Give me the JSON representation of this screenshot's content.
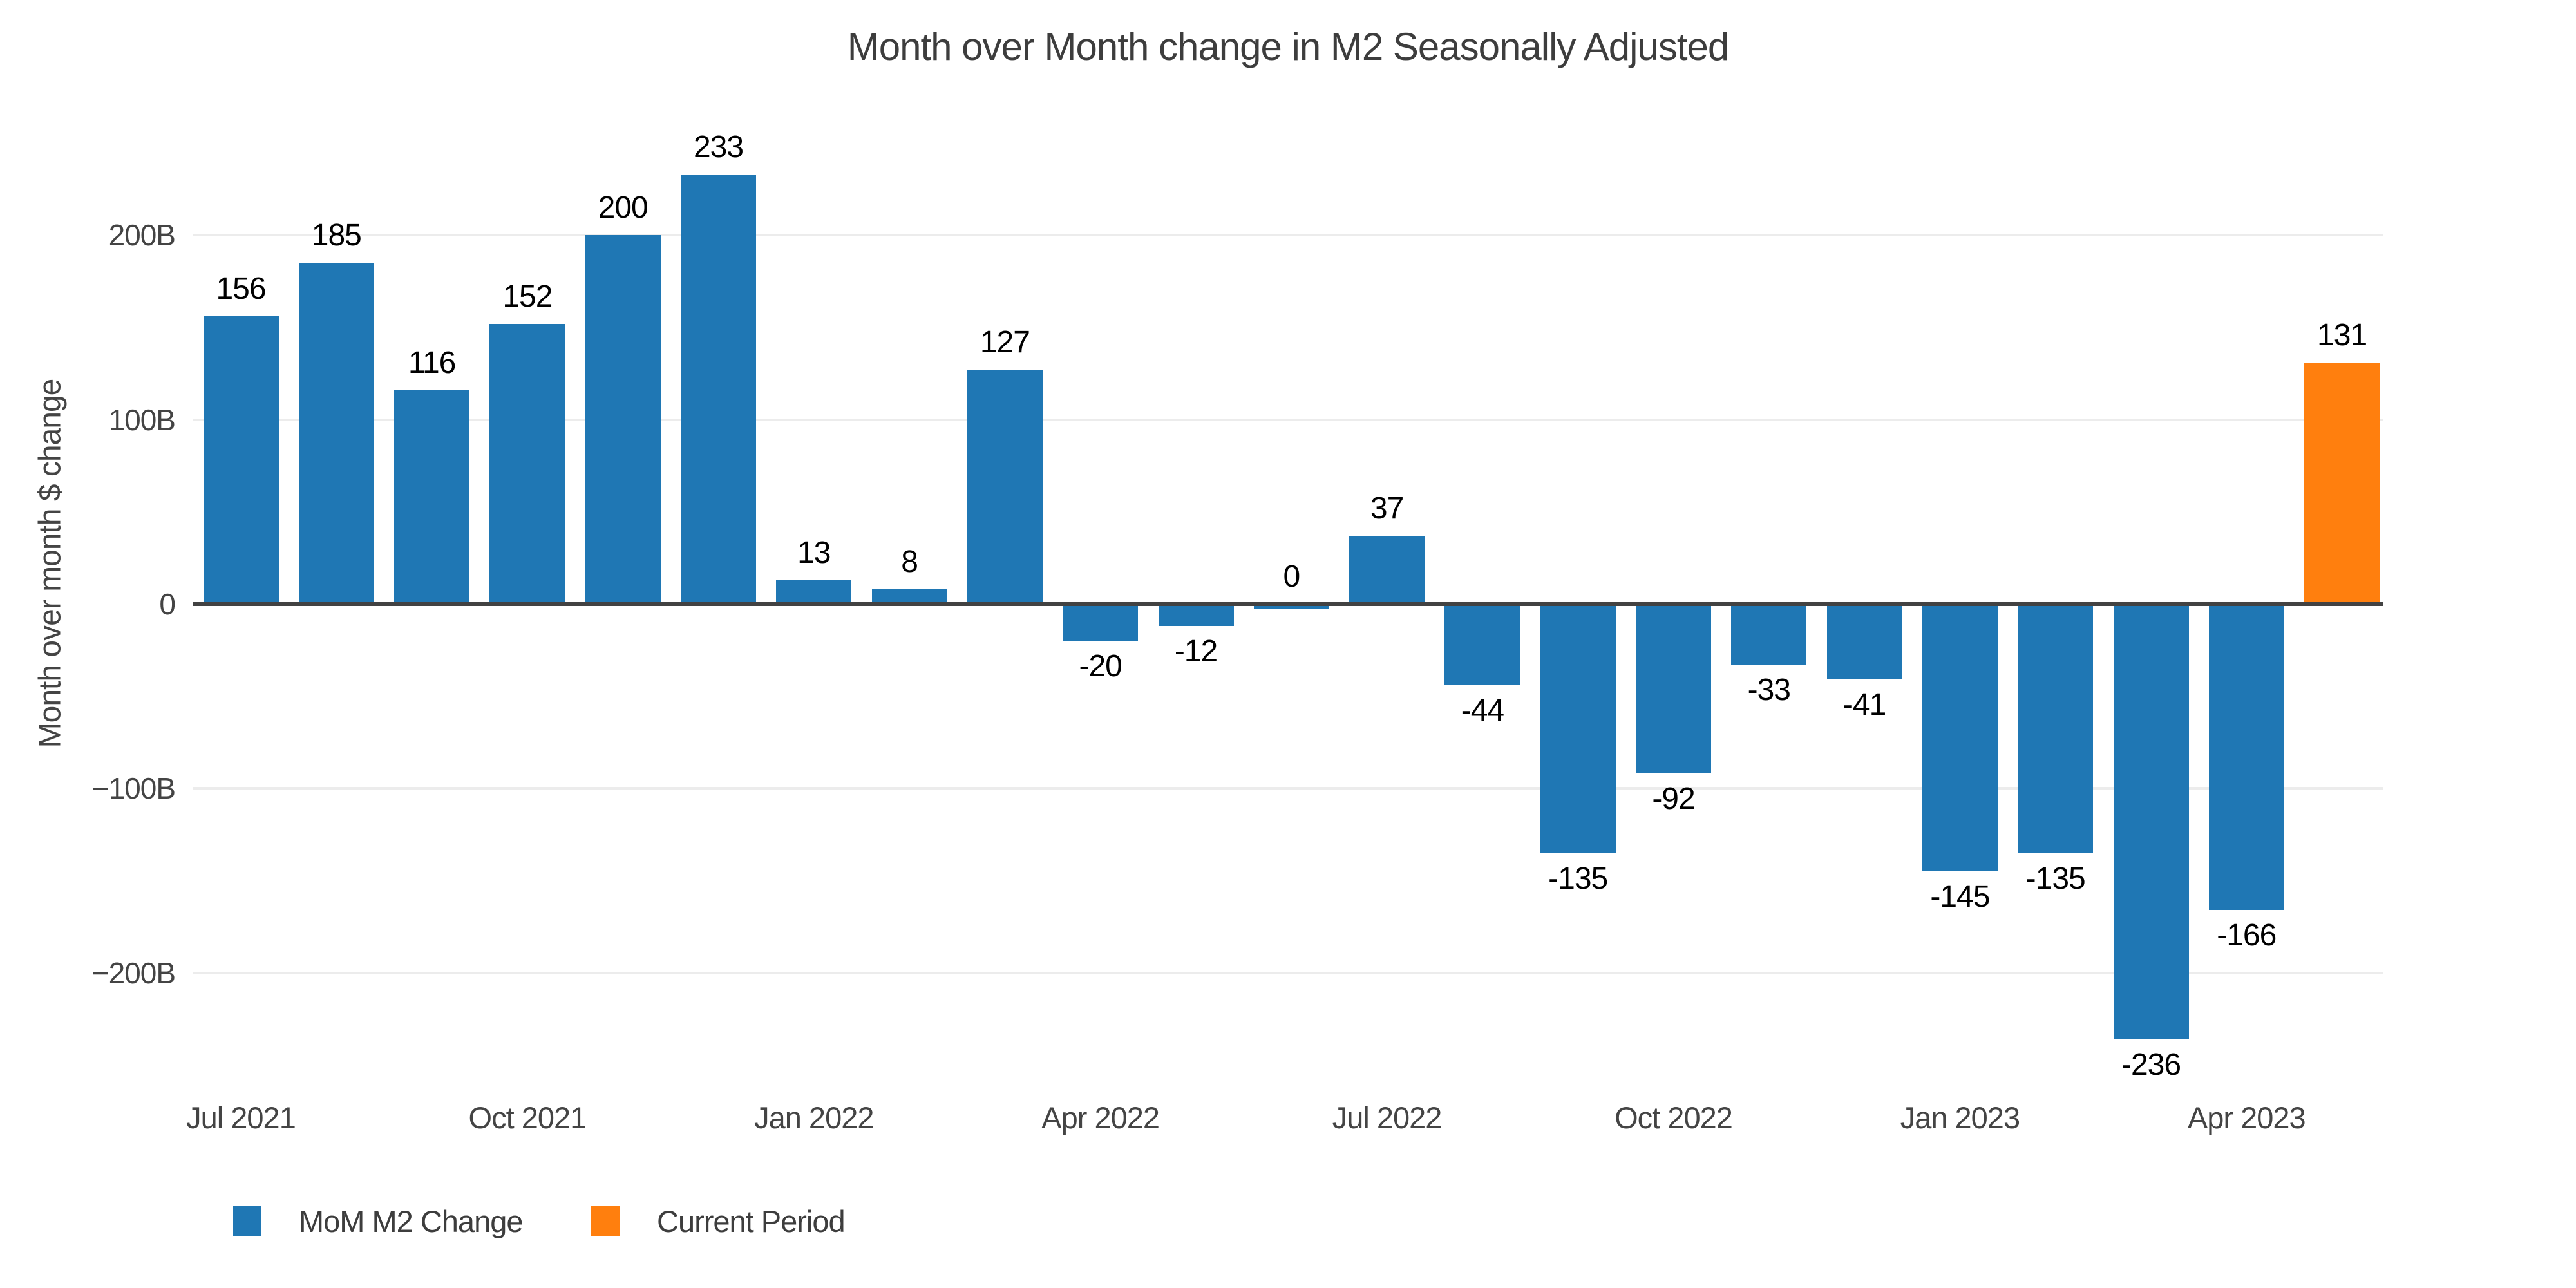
{
  "colors": {
    "primary_bar": "#1f77b4",
    "current_bar": "#ff7f0e",
    "gridline": "#ececec",
    "zero_line": "#424242",
    "axis_text": "#444444",
    "bar_label_text": "#000000",
    "title_text": "#3d3d3d",
    "background": "#ffffff"
  },
  "legend": {
    "items": [
      {
        "label": "MoM M2 Change",
        "color_key": "primary_bar"
      },
      {
        "label": "Current Period",
        "color_key": "current_bar"
      }
    ]
  },
  "chart_data": {
    "type": "bar",
    "title": "Month over Month change in M2 Seasonally Adjusted",
    "xlabel": "",
    "ylabel": "Month over month $ change",
    "values": [
      156,
      185,
      116,
      152,
      200,
      233,
      13,
      8,
      127,
      -20,
      -12,
      0,
      37,
      -44,
      -135,
      -92,
      -33,
      -41,
      -145,
      -135,
      -236,
      -166,
      131
    ],
    "bar_value_labels": [
      "156",
      "185",
      "116",
      "152",
      "200",
      "233",
      "13",
      "8",
      "127",
      "-20",
      "-12",
      "0",
      "37",
      "-44",
      "-135",
      "-92",
      "-33",
      "-41",
      "-145",
      "-135",
      "-236",
      "-166",
      "131"
    ],
    "current_period_index": 22,
    "x_tick_labels": [
      "Jul 2021",
      "Oct 2021",
      "Jan 2022",
      "Apr 2022",
      "Jul 2022",
      "Oct 2022",
      "Jan 2023",
      "Apr 2023"
    ],
    "x_tick_bar_indices": [
      0,
      3,
      6,
      9,
      12,
      15,
      18,
      21
    ],
    "y_ticks": [
      {
        "label": "200B",
        "value": 200
      },
      {
        "label": "100B",
        "value": 100
      },
      {
        "label": "0",
        "value": 0
      },
      {
        "label": "−100B",
        "value": -100
      },
      {
        "label": "−200B",
        "value": -200
      }
    ],
    "ylim": [
      -255,
      258
    ],
    "grid": true,
    "legend_position": "bottom-left"
  }
}
